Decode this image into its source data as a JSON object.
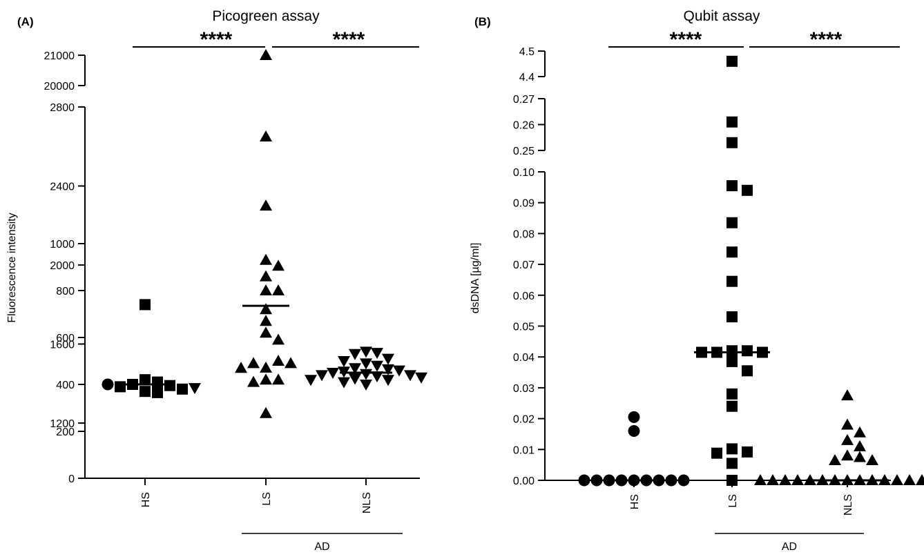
{
  "chart_data": [
    {
      "panel": "(A)",
      "type": "scatter",
      "title": "Picogreen assay",
      "ylabel": "Fluorescence intensity",
      "categories": [
        "HS",
        "LS",
        "NLS"
      ],
      "group_label": "AD",
      "significance": [
        "****",
        "****"
      ],
      "y_segments": [
        {
          "range": [
            0,
            1000
          ],
          "ticks": [
            "0",
            "200",
            "400",
            "600",
            "800",
            "1000"
          ],
          "tick_values": [
            0,
            200,
            400,
            600,
            800,
            1000
          ]
        },
        {
          "range": [
            1200,
            2800
          ],
          "ticks": [
            "1200",
            "1600",
            "2000",
            "2400",
            "2800"
          ],
          "tick_values": [
            1200,
            1600,
            2000,
            2400,
            2800
          ]
        },
        {
          "range": [
            20000,
            21000
          ],
          "ticks": [
            "20000",
            "21000"
          ],
          "tick_values": [
            20000,
            21000
          ]
        }
      ],
      "series": [
        {
          "category": "HS",
          "marker": "square",
          "values": [
            740,
            420,
            410,
            400,
            395,
            390,
            380,
            370,
            365
          ]
        },
        {
          "category": "HS",
          "marker": "circle",
          "values": [
            400
          ]
        },
        {
          "category": "HS",
          "marker": "triangle-down",
          "values": [
            385
          ]
        },
        {
          "category": "LS",
          "marker": "triangle-up",
          "values": [
            21000,
            2650,
            2300,
            1480,
            1250,
            930,
            905,
            860,
            800,
            800,
            720,
            670,
            620,
            590,
            500,
            490,
            490,
            470,
            420,
            420,
            410
          ]
        },
        {
          "category": "NLS",
          "marker": "triangle-down",
          "values": [
            540,
            535,
            530,
            510,
            500,
            490,
            480,
            470,
            465,
            460,
            455,
            450,
            445,
            440,
            440,
            435,
            430,
            425,
            420,
            420,
            410,
            400
          ]
        }
      ],
      "medians": [
        {
          "category": "HS",
          "value": 400
        },
        {
          "category": "LS",
          "value": 735
        },
        {
          "category": "NLS",
          "value": 450
        }
      ]
    },
    {
      "panel": "(B)",
      "type": "scatter",
      "title": "Qubit assay",
      "ylabel": "dsDNA [µg/ml]",
      "categories": [
        "HS",
        "LS",
        "NLS"
      ],
      "group_label": "AD",
      "significance": [
        "****",
        "****"
      ],
      "y_segments": [
        {
          "range": [
            0,
            0.1
          ],
          "ticks": [
            "0.00",
            "0.01",
            "0.02",
            "0.03",
            "0.04",
            "0.05",
            "0.06",
            "0.07",
            "0.08",
            "0.09",
            "0.10"
          ],
          "tick_values": [
            0,
            0.01,
            0.02,
            0.03,
            0.04,
            0.05,
            0.06,
            0.07,
            0.08,
            0.09,
            0.1
          ]
        },
        {
          "range": [
            0.25,
            0.27
          ],
          "ticks": [
            "0.25",
            "0.26",
            "0.27"
          ],
          "tick_values": [
            0.25,
            0.26,
            0.27
          ]
        },
        {
          "range": [
            4.4,
            4.5
          ],
          "ticks": [
            "4.4",
            "4.5"
          ],
          "tick_values": [
            4.4,
            4.5
          ]
        }
      ],
      "series": [
        {
          "category": "HS",
          "marker": "circle",
          "values": [
            0.0205,
            0.016,
            0,
            0,
            0,
            0,
            0,
            0,
            0,
            0,
            0
          ]
        },
        {
          "category": "LS",
          "marker": "square",
          "values": [
            4.46,
            0.261,
            0.253,
            0.0955,
            0.094,
            0.0835,
            0.074,
            0.0645,
            0.053,
            0.042,
            0.042,
            0.0415,
            0.0415,
            0.0415,
            0.0385,
            0.0355,
            0.028,
            0.024,
            0.0102,
            0.0092,
            0.0088,
            0.0055,
            0
          ]
        },
        {
          "category": "NLS",
          "marker": "triangle-up",
          "values": [
            0.0275,
            0.018,
            0.0155,
            0.013,
            0.011,
            0.008,
            0.0075,
            0.0065,
            0.0065,
            0,
            0,
            0,
            0,
            0,
            0,
            0,
            0,
            0,
            0,
            0,
            0,
            0,
            0,
            0,
            0
          ]
        }
      ],
      "medians": [
        {
          "category": "HS",
          "value": 0
        },
        {
          "category": "LS",
          "value": 0.0415
        },
        {
          "category": "NLS",
          "value": 0
        }
      ]
    }
  ]
}
